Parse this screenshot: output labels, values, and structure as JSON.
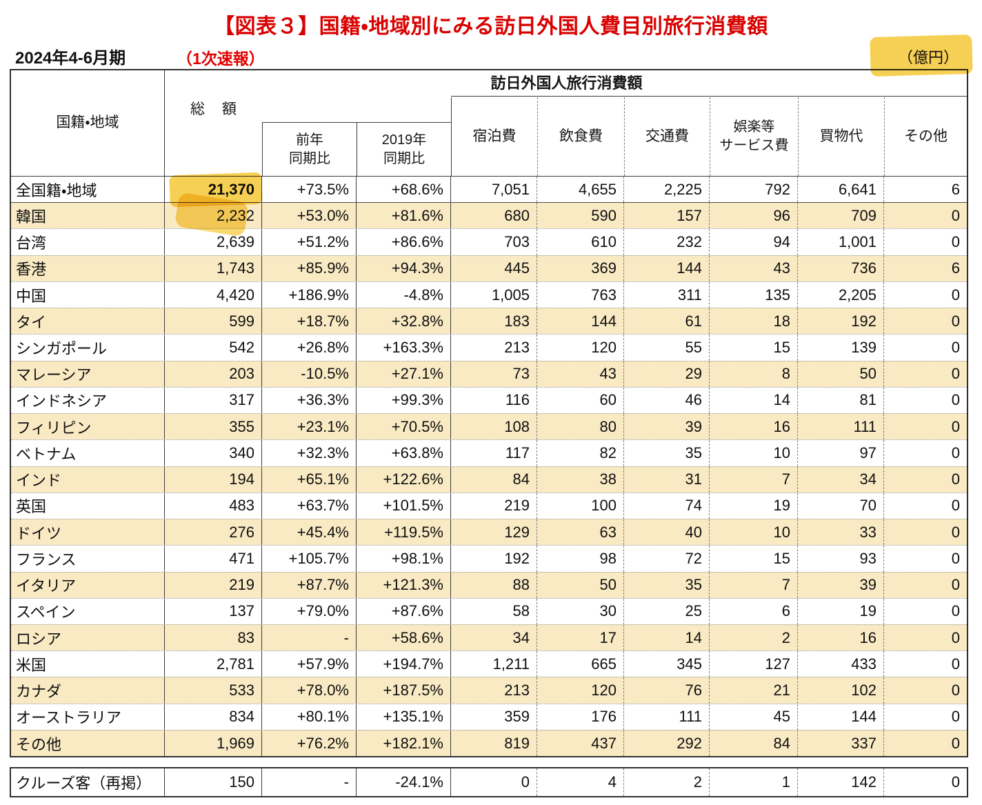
{
  "page": {
    "title": "【図表３】国籍・地域別にみる訪日外国人費目別旅行消費額",
    "period": "2024年4-6月期",
    "note": "（1次速報）",
    "unit": "（億円）"
  },
  "icons": {
    "unit_highlight": "yellow-marker-highlight",
    "total_highlight": "yellow-marker-highlight"
  },
  "colors": {
    "title_red": "#d90000",
    "note_red": "#e00000",
    "shaded_row": "#f9eac4",
    "marker_yellow": "#f6ce4b",
    "border_dark": "#2e2e2e"
  },
  "table": {
    "span_header": "訪日外国人旅行消費額",
    "headers": {
      "region": "国籍・地域",
      "total": "総　額",
      "yoy": "前年\n同期比",
      "vs2019": "2019年\n同期比",
      "categories": [
        "宿泊費",
        "飲食費",
        "交通費",
        "娯楽等\nサービス費",
        "買物代",
        "その他"
      ]
    },
    "rows": [
      {
        "label": "全国籍・地域",
        "values": [
          "21,370",
          "+73.5%",
          "+68.6%",
          "7,051",
          "4,655",
          "2,225",
          "792",
          "6,641",
          "6"
        ],
        "shaded": false,
        "bold_total": true
      },
      {
        "label": "韓国",
        "values": [
          "2,232",
          "+53.0%",
          "+81.6%",
          "680",
          "590",
          "157",
          "96",
          "709",
          "0"
        ],
        "shaded": true
      },
      {
        "label": "台湾",
        "values": [
          "2,639",
          "+51.2%",
          "+86.6%",
          "703",
          "610",
          "232",
          "94",
          "1,001",
          "0"
        ],
        "shaded": false
      },
      {
        "label": "香港",
        "values": [
          "1,743",
          "+85.9%",
          "+94.3%",
          "445",
          "369",
          "144",
          "43",
          "736",
          "6"
        ],
        "shaded": true
      },
      {
        "label": "中国",
        "values": [
          "4,420",
          "+186.9%",
          "-4.8%",
          "1,005",
          "763",
          "311",
          "135",
          "2,205",
          "0"
        ],
        "shaded": false
      },
      {
        "label": "タイ",
        "values": [
          "599",
          "+18.7%",
          "+32.8%",
          "183",
          "144",
          "61",
          "18",
          "192",
          "0"
        ],
        "shaded": true
      },
      {
        "label": "シンガポール",
        "values": [
          "542",
          "+26.8%",
          "+163.3%",
          "213",
          "120",
          "55",
          "15",
          "139",
          "0"
        ],
        "shaded": false
      },
      {
        "label": "マレーシア",
        "values": [
          "203",
          "-10.5%",
          "+27.1%",
          "73",
          "43",
          "29",
          "8",
          "50",
          "0"
        ],
        "shaded": true
      },
      {
        "label": "インドネシア",
        "values": [
          "317",
          "+36.3%",
          "+99.3%",
          "116",
          "60",
          "46",
          "14",
          "81",
          "0"
        ],
        "shaded": false
      },
      {
        "label": "フィリピン",
        "values": [
          "355",
          "+23.1%",
          "+70.5%",
          "108",
          "80",
          "39",
          "16",
          "111",
          "0"
        ],
        "shaded": true
      },
      {
        "label": "ベトナム",
        "values": [
          "340",
          "+32.3%",
          "+63.8%",
          "117",
          "82",
          "35",
          "10",
          "97",
          "0"
        ],
        "shaded": false
      },
      {
        "label": "インド",
        "values": [
          "194",
          "+65.1%",
          "+122.6%",
          "84",
          "38",
          "31",
          "7",
          "34",
          "0"
        ],
        "shaded": true
      },
      {
        "label": "英国",
        "values": [
          "483",
          "+63.7%",
          "+101.5%",
          "219",
          "100",
          "74",
          "19",
          "70",
          "0"
        ],
        "shaded": false
      },
      {
        "label": "ドイツ",
        "values": [
          "276",
          "+45.4%",
          "+119.5%",
          "129",
          "63",
          "40",
          "10",
          "33",
          "0"
        ],
        "shaded": true
      },
      {
        "label": "フランス",
        "values": [
          "471",
          "+105.7%",
          "+98.1%",
          "192",
          "98",
          "72",
          "15",
          "93",
          "0"
        ],
        "shaded": false
      },
      {
        "label": "イタリア",
        "values": [
          "219",
          "+87.7%",
          "+121.3%",
          "88",
          "50",
          "35",
          "7",
          "39",
          "0"
        ],
        "shaded": true
      },
      {
        "label": "スペイン",
        "values": [
          "137",
          "+79.0%",
          "+87.6%",
          "58",
          "30",
          "25",
          "6",
          "19",
          "0"
        ],
        "shaded": false
      },
      {
        "label": "ロシア",
        "values": [
          "83",
          "-",
          "+58.6%",
          "34",
          "17",
          "14",
          "2",
          "16",
          "0"
        ],
        "shaded": true
      },
      {
        "label": "米国",
        "values": [
          "2,781",
          "+57.9%",
          "+194.7%",
          "1,211",
          "665",
          "345",
          "127",
          "433",
          "0"
        ],
        "shaded": false
      },
      {
        "label": "カナダ",
        "values": [
          "533",
          "+78.0%",
          "+187.5%",
          "213",
          "120",
          "76",
          "21",
          "102",
          "0"
        ],
        "shaded": true
      },
      {
        "label": "オーストラリア",
        "values": [
          "834",
          "+80.1%",
          "+135.1%",
          "359",
          "176",
          "111",
          "45",
          "144",
          "0"
        ],
        "shaded": false
      },
      {
        "label": "その他",
        "values": [
          "1,969",
          "+76.2%",
          "+182.1%",
          "819",
          "437",
          "292",
          "84",
          "337",
          "0"
        ],
        "shaded": true
      }
    ],
    "cruise_row": {
      "label": "クルーズ客（再掲）",
      "values": [
        "150",
        "-",
        "-24.1%",
        "0",
        "4",
        "2",
        "1",
        "142",
        "0"
      ]
    }
  }
}
